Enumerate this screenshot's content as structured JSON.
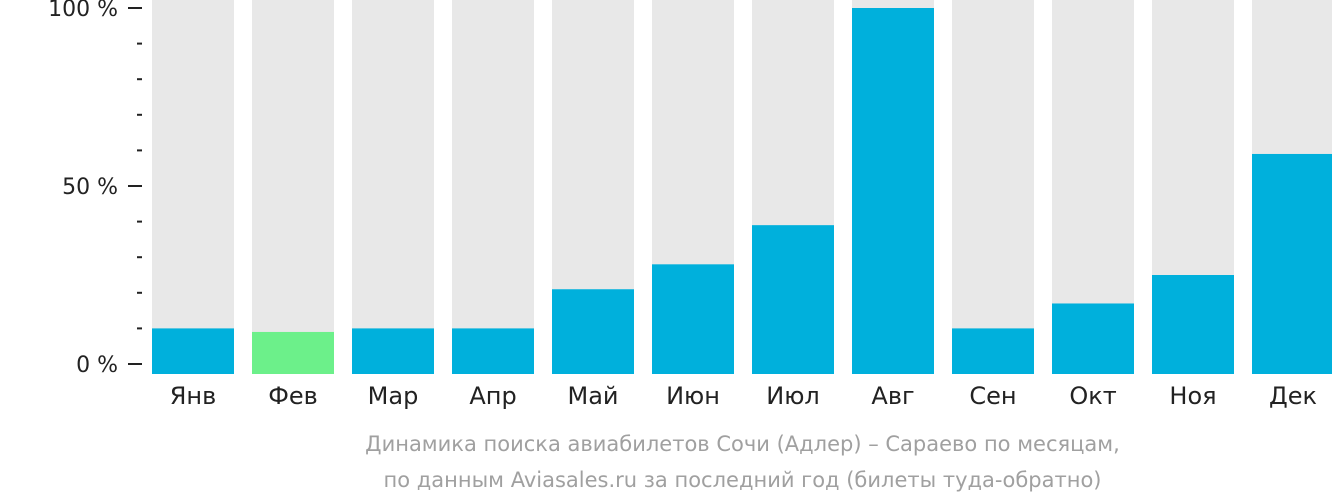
{
  "chart_data": {
    "type": "bar",
    "categories": [
      "Янв",
      "Фев",
      "Мар",
      "Апр",
      "Май",
      "Июн",
      "Июл",
      "Авг",
      "Сен",
      "Окт",
      "Ноя",
      "Дек"
    ],
    "values": [
      10,
      9,
      10,
      10,
      21,
      28,
      39,
      100,
      10,
      17,
      25,
      59
    ],
    "ylim": [
      0,
      100
    ],
    "yticks": [
      {
        "value": 0,
        "label": "0 %"
      },
      {
        "value": 50,
        "label": "50 %"
      },
      {
        "value": 100,
        "label": "100 %"
      }
    ],
    "minor_tick_step": 10,
    "highlight_index": 1,
    "colors": {
      "bar": "#00b0dc",
      "highlight": "#6cf08a",
      "track": "#e8e8e8",
      "axis": "#222222"
    }
  },
  "caption": {
    "line1": "Динамика поиска авиабилетов Сочи (Адлер) – Сараево по месяцам,",
    "line2": "по данным Aviasales.ru за последний год (билеты туда-обратно)"
  }
}
